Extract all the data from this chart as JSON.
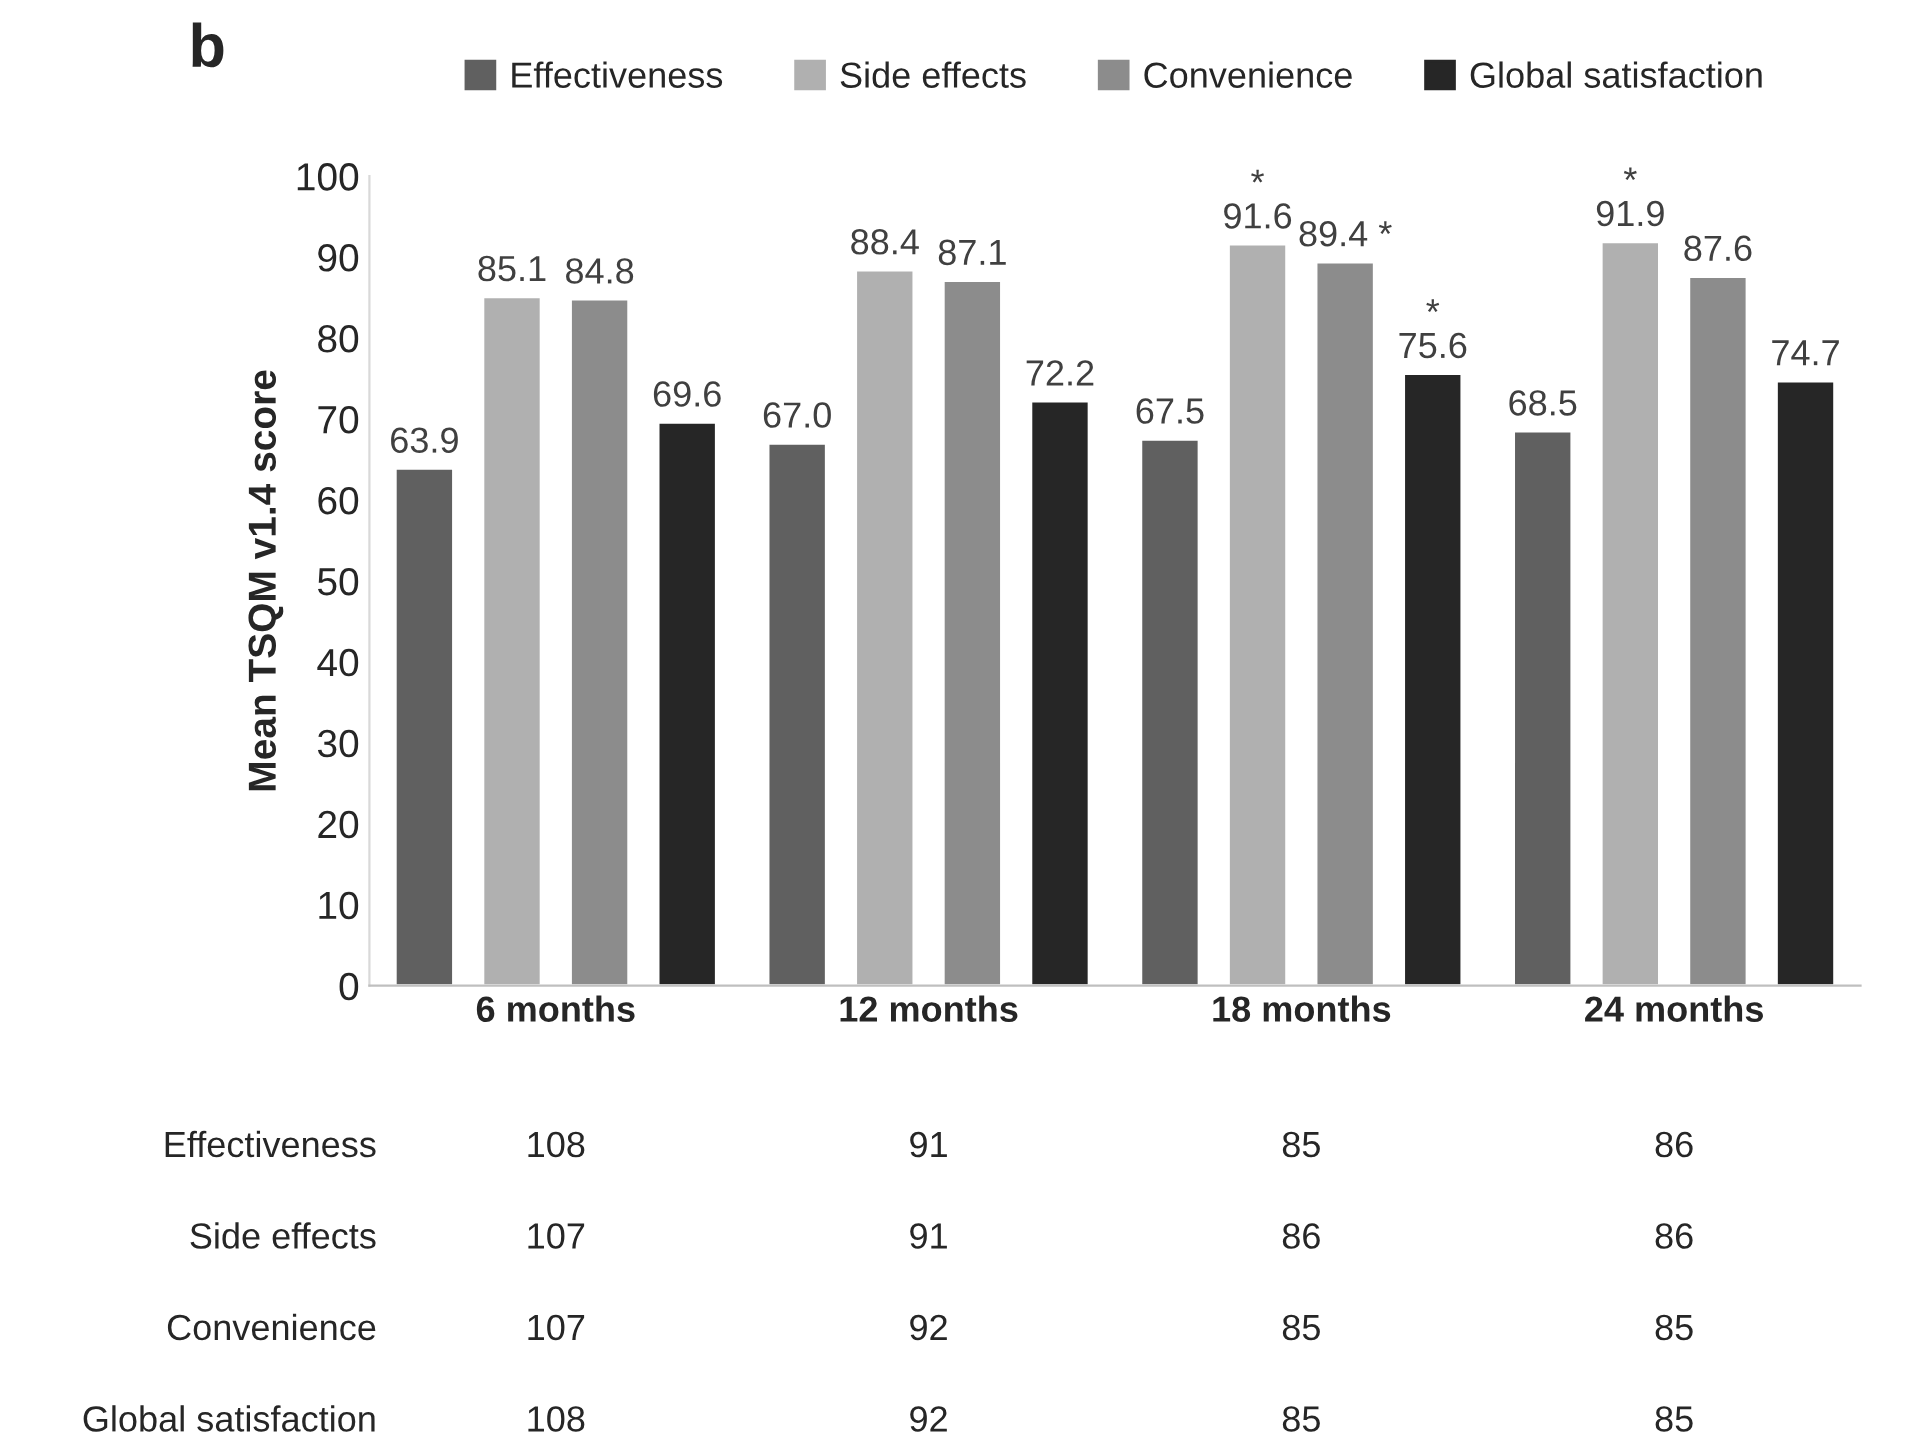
{
  "chart_data": {
    "type": "bar",
    "title": "b",
    "ylabel": "Mean TSQM v1.4 score",
    "categories": [
      "6 months",
      "12 months",
      "18 months",
      "24 months"
    ],
    "series": [
      {
        "name": "Effectiveness",
        "color": "#606060",
        "values": [
          63.9,
          67.0,
          67.5,
          68.5
        ],
        "value_labels": [
          "63.9",
          "67.0",
          "67.5",
          "68.5"
        ]
      },
      {
        "name": "Side effects",
        "color": "#b0b0b0",
        "values": [
          85.1,
          88.4,
          91.6,
          91.9
        ],
        "value_labels": [
          "85.1",
          "88.4",
          "*\n91.6",
          "*\n91.9"
        ]
      },
      {
        "name": "Convenience",
        "color": "#8c8c8c",
        "values": [
          84.8,
          87.1,
          89.4,
          87.6
        ],
        "value_labels": [
          "84.8",
          "87.1",
          "89.4 *",
          "87.6"
        ]
      },
      {
        "name": "Global satisfaction",
        "color": "#262626",
        "values": [
          69.6,
          72.2,
          75.6,
          74.7
        ],
        "value_labels": [
          "69.6",
          "72.2",
          "*\n75.6",
          "74.7"
        ]
      }
    ],
    "ylim": [
      0,
      100
    ],
    "yticks": [
      0,
      10,
      20,
      30,
      40,
      50,
      60,
      70,
      80,
      90,
      100
    ],
    "grid": false,
    "legend": "top",
    "annotations": [
      "Effectiveness",
      "108",
      "91",
      "85",
      "86",
      "Side effects",
      "107",
      "91",
      "86",
      "86",
      "Convenience",
      "107",
      "92",
      "85",
      "85",
      "Global satisfaction",
      "108",
      "92",
      "85",
      "85"
    ]
  }
}
